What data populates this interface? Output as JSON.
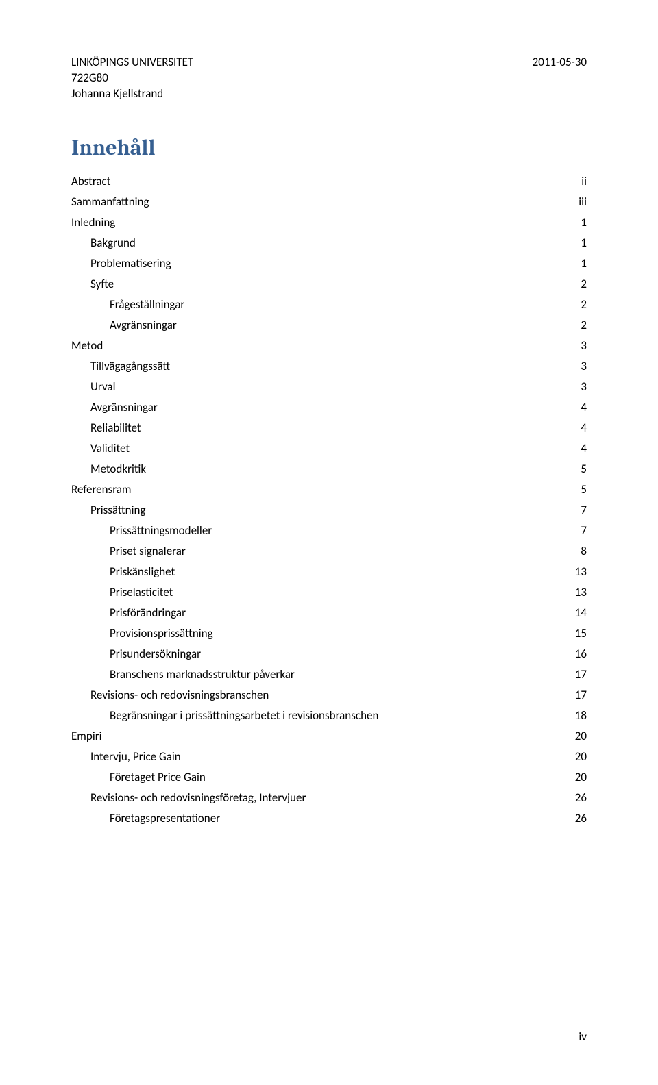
{
  "header": {
    "university": "LINKÖPINGS UNIVERSITET",
    "course_code": "722G80",
    "author": "Johanna Kjellstrand",
    "date": "2011-05-30"
  },
  "heading": "Innehåll",
  "toc": {
    "items": [
      {
        "label": "Abstract",
        "page": "ii",
        "indent": 0
      },
      {
        "label": "Sammanfattning",
        "page": "iii",
        "indent": 0
      },
      {
        "label": "Inledning",
        "page": "1",
        "indent": 0
      },
      {
        "label": "Bakgrund",
        "page": "1",
        "indent": 1
      },
      {
        "label": "Problematisering",
        "page": "1",
        "indent": 1
      },
      {
        "label": "Syfte",
        "page": "2",
        "indent": 1
      },
      {
        "label": "Frågeställningar",
        "page": "2",
        "indent": 2
      },
      {
        "label": "Avgränsningar",
        "page": "2",
        "indent": 2
      },
      {
        "label": "Metod",
        "page": "3",
        "indent": 0
      },
      {
        "label": "Tillvägagångssätt",
        "page": "3",
        "indent": 1
      },
      {
        "label": "Urval",
        "page": "3",
        "indent": 1
      },
      {
        "label": "Avgränsningar",
        "page": "4",
        "indent": 1
      },
      {
        "label": "Reliabilitet",
        "page": "4",
        "indent": 1
      },
      {
        "label": "Validitet",
        "page": "4",
        "indent": 1
      },
      {
        "label": "Metodkritik",
        "page": "5",
        "indent": 1
      },
      {
        "label": "Referensram",
        "page": "5",
        "indent": 0
      },
      {
        "label": "Prissättning",
        "page": "7",
        "indent": 1
      },
      {
        "label": "Prissättningsmodeller",
        "page": "7",
        "indent": 2
      },
      {
        "label": "Priset signalerar",
        "page": "8",
        "indent": 2
      },
      {
        "label": "Priskänslighet",
        "page": "13",
        "indent": 2
      },
      {
        "label": "Priselasticitet",
        "page": "13",
        "indent": 2
      },
      {
        "label": "Prisförändringar",
        "page": "14",
        "indent": 2
      },
      {
        "label": "Provisionsprissättning",
        "page": "15",
        "indent": 2
      },
      {
        "label": "Prisundersökningar",
        "page": "16",
        "indent": 2
      },
      {
        "label": "Branschens marknadsstruktur påverkar",
        "page": "17",
        "indent": 2
      },
      {
        "label": "Revisions- och redovisningsbranschen",
        "page": "17",
        "indent": 1
      },
      {
        "label": "Begränsningar i prissättningsarbetet i revisionsbranschen",
        "page": "18",
        "indent": 2
      },
      {
        "label": "Empiri",
        "page": "20",
        "indent": 0
      },
      {
        "label": "Intervju, Price Gain",
        "page": "20",
        "indent": 1
      },
      {
        "label": "Företaget Price Gain",
        "page": "20",
        "indent": 2
      },
      {
        "label": "Revisions- och redovisningsföretag, Intervjuer",
        "page": "26",
        "indent": 1
      },
      {
        "label": "Företagspresentationer",
        "page": "26",
        "indent": 2
      }
    ]
  },
  "footer": {
    "page_number": "iv"
  },
  "colors": {
    "heading_color": "#365f91",
    "text_color": "#000000",
    "background": "#ffffff"
  },
  "typography": {
    "body_font": "Calibri",
    "heading_font": "Cambria",
    "body_size_pt": 12,
    "heading_size_pt": 22
  }
}
